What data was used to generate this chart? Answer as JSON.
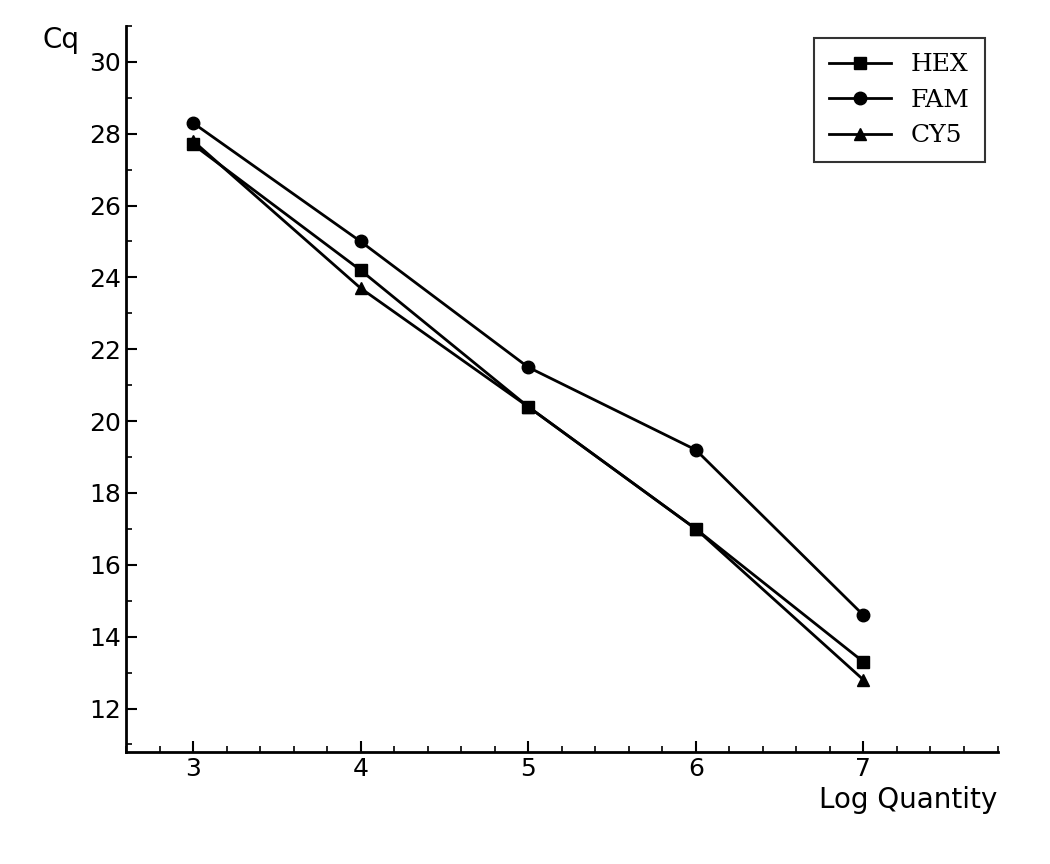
{
  "x": [
    3,
    4,
    5,
    6,
    7
  ],
  "HEX": [
    27.7,
    24.2,
    20.4,
    17.0,
    13.3
  ],
  "FAM": [
    28.3,
    25.0,
    21.5,
    19.2,
    14.6
  ],
  "CY5": [
    27.8,
    23.7,
    20.4,
    17.0,
    12.8
  ],
  "xlabel": "Log Quantity",
  "ylabel": "Cq",
  "ylim": [
    10.8,
    31.0
  ],
  "xlim": [
    2.6,
    7.8
  ],
  "yticks": [
    12,
    14,
    16,
    18,
    20,
    22,
    24,
    26,
    28,
    30
  ],
  "xticks": [
    3,
    4,
    5,
    6,
    7
  ],
  "line_color": "#000000",
  "marker_size": 9,
  "linewidth": 2.0,
  "legend_loc": "upper right",
  "legend_fontsize": 18,
  "axis_label_fontsize": 20,
  "tick_fontsize": 18,
  "background_color": "#ffffff"
}
